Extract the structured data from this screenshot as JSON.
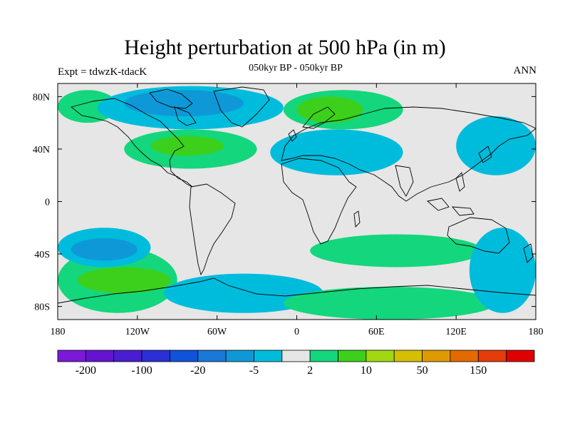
{
  "title": "Height perturbation at 500 hPa (in m)",
  "subtitle_left": "Expt = tdwzK-tdacK",
  "subtitle_center": "050kyr BP - 050kyr BP",
  "subtitle_right": "ANN",
  "chart_data": {
    "type": "heatmap",
    "projection": "cylindrical equidistant",
    "variable": "500 hPa geopotential height perturbation",
    "units": "m",
    "lon_range": [
      -180,
      180
    ],
    "lat_range": [
      -90,
      90
    ],
    "x_ticks": [
      {
        "lon": -180,
        "label": "180"
      },
      {
        "lon": -120,
        "label": "120W"
      },
      {
        "lon": -60,
        "label": "60W"
      },
      {
        "lon": 0,
        "label": "0"
      },
      {
        "lon": 60,
        "label": "60E"
      },
      {
        "lon": 120,
        "label": "120E"
      },
      {
        "lon": 180,
        "label": "180"
      }
    ],
    "y_ticks": [
      {
        "lat": 80,
        "label": "80N"
      },
      {
        "lat": 40,
        "label": "40N"
      },
      {
        "lat": 0,
        "label": "0"
      },
      {
        "lat": -40,
        "label": "40S"
      },
      {
        "lat": -80,
        "label": "80S"
      }
    ],
    "colorbar": {
      "colors": [
        "#7a1ad7",
        "#6414d0",
        "#4a1ed0",
        "#2a2fd6",
        "#1052d8",
        "#1a78d8",
        "#0f98d8",
        "#00bcdc",
        "#e6e6e6",
        "#14d67c",
        "#3cd01c",
        "#a0d812",
        "#d6be00",
        "#de9a00",
        "#e46a00",
        "#e43c0a",
        "#e00000"
      ],
      "labels": [
        "-200",
        "-100",
        "-20",
        "-5",
        "2",
        "10",
        "50",
        "150"
      ]
    },
    "regions": [
      {
        "level": "2 to 10",
        "color": "#14d67c",
        "lon_range": [
          -180,
          -135
        ],
        "lat_range": [
          60,
          85
        ]
      },
      {
        "level": "-5 to 2",
        "color": "#00bcdc",
        "lon_range": [
          -150,
          -10
        ],
        "lat_range": [
          55,
          88
        ]
      },
      {
        "level": "-20 to -5",
        "color": "#0f98d8",
        "lon_range": [
          -130,
          -40
        ],
        "lat_range": [
          65,
          85
        ]
      },
      {
        "level": "2 to 10",
        "color": "#14d67c",
        "lon_range": [
          -130,
          -30
        ],
        "lat_range": [
          25,
          55
        ]
      },
      {
        "level": "10 to 50",
        "color": "#3cd01c",
        "lon_range": [
          -110,
          -55
        ],
        "lat_range": [
          35,
          50
        ]
      },
      {
        "level": "-5 to 2",
        "color": "#00bcdc",
        "lon_range": [
          -20,
          80
        ],
        "lat_range": [
          20,
          55
        ]
      },
      {
        "level": "2 to 10",
        "color": "#14d67c",
        "lon_range": [
          -10,
          80
        ],
        "lat_range": [
          55,
          85
        ]
      },
      {
        "level": "10 to 50",
        "color": "#3cd01c",
        "lon_range": [
          0,
          50
        ],
        "lat_range": [
          60,
          80
        ]
      },
      {
        "level": "-5 to 2",
        "color": "#00bcdc",
        "lon_range": [
          120,
          180
        ],
        "lat_range": [
          20,
          65
        ]
      },
      {
        "level": "2 to 10",
        "color": "#14d67c",
        "lon_range": [
          -180,
          -90
        ],
        "lat_range": [
          -85,
          -35
        ]
      },
      {
        "level": "10 to 50",
        "color": "#3cd01c",
        "lon_range": [
          -165,
          -95
        ],
        "lat_range": [
          -70,
          -50
        ]
      },
      {
        "level": "-5 to 2",
        "color": "#00bcdc",
        "lon_range": [
          -180,
          -110
        ],
        "lat_range": [
          -50,
          -20
        ]
      },
      {
        "level": "-20 to -5",
        "color": "#0f98d8",
        "lon_range": [
          -170,
          -120
        ],
        "lat_range": [
          -45,
          -28
        ]
      },
      {
        "level": "2 to 10",
        "color": "#14d67c",
        "lon_range": [
          10,
          140
        ],
        "lat_range": [
          -50,
          -25
        ]
      },
      {
        "level": "-5 to 2",
        "color": "#00bcdc",
        "lon_range": [
          -100,
          20
        ],
        "lat_range": [
          -85,
          -55
        ]
      },
      {
        "level": "2 to 10",
        "color": "#14d67c",
        "lon_range": [
          -10,
          150
        ],
        "lat_range": [
          -90,
          -65
        ]
      },
      {
        "level": "-5 to 2",
        "color": "#00bcdc",
        "lon_range": [
          130,
          180
        ],
        "lat_range": [
          -85,
          -20
        ]
      }
    ]
  }
}
